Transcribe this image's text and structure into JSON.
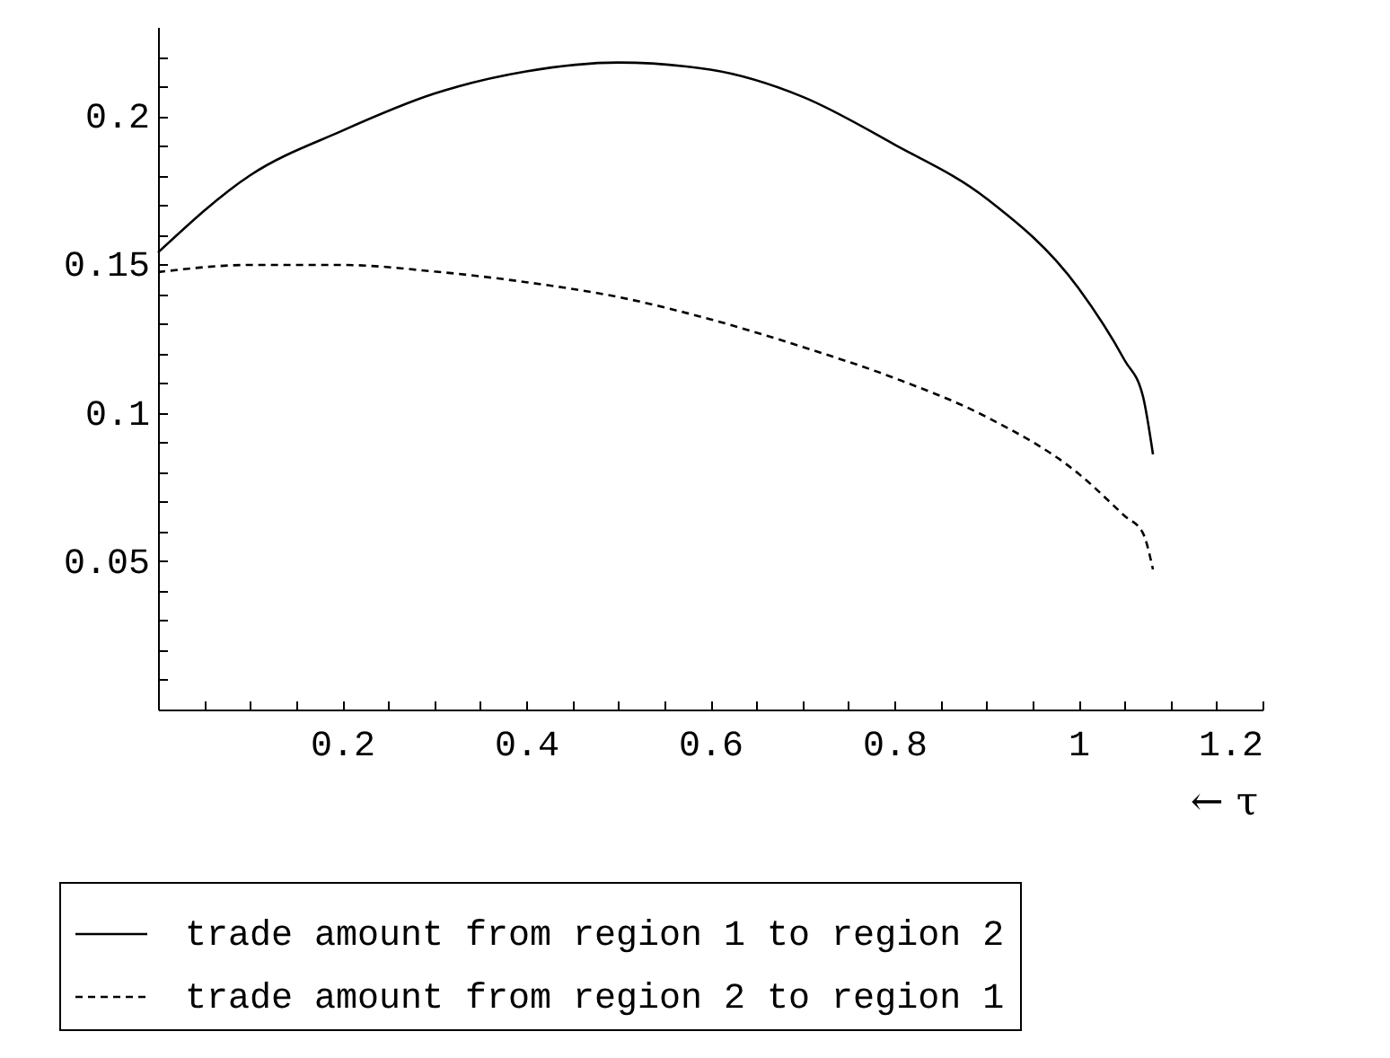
{
  "chart_data": {
    "type": "line",
    "xlabel": "← τ",
    "xlim": [
      0,
      1.2
    ],
    "ylim": [
      0,
      0.23
    ],
    "xticks": [
      {
        "value": 0.05,
        "label": null
      },
      {
        "value": 0.1,
        "label": null
      },
      {
        "value": 0.15,
        "label": null
      },
      0.2,
      {
        "value": 0.25,
        "label": null
      },
      {
        "value": 0.3,
        "label": null
      },
      {
        "value": 0.35,
        "label": null
      },
      0.4,
      {
        "value": 0.45,
        "label": null
      },
      {
        "value": 0.5,
        "label": null
      },
      {
        "value": 0.55,
        "label": null
      },
      0.6,
      {
        "value": 0.65,
        "label": null
      },
      {
        "value": 0.7,
        "label": null
      },
      {
        "value": 0.75,
        "label": null
      },
      0.8,
      {
        "value": 0.85,
        "label": null
      },
      {
        "value": 0.9,
        "label": null
      },
      {
        "value": 0.95,
        "label": null
      },
      1,
      {
        "value": 1.05,
        "label": null
      },
      {
        "value": 1.1,
        "label": null
      },
      {
        "value": 1.15,
        "label": null
      },
      1.2
    ],
    "yticks": [
      {
        "value": 0.01,
        "label": null
      },
      {
        "value": 0.02,
        "label": null
      },
      {
        "value": 0.03,
        "label": null
      },
      {
        "value": 0.04,
        "label": null
      },
      0.05,
      {
        "value": 0.06,
        "label": null
      },
      {
        "value": 0.07,
        "label": null
      },
      {
        "value": 0.08,
        "label": null
      },
      {
        "value": 0.09,
        "label": null
      },
      0.1,
      {
        "value": 0.11,
        "label": null
      },
      {
        "value": 0.12,
        "label": null
      },
      {
        "value": 0.13,
        "label": null
      },
      {
        "value": 0.14,
        "label": null
      },
      0.15,
      {
        "value": 0.16,
        "label": null
      },
      {
        "value": 0.17,
        "label": null
      },
      {
        "value": 0.18,
        "label": null
      },
      {
        "value": 0.19,
        "label": null
      },
      0.2,
      {
        "value": 0.21,
        "label": null
      },
      {
        "value": 0.22,
        "label": null
      }
    ],
    "x": [
      0,
      0.1,
      0.2,
      0.3,
      0.4,
      0.5,
      0.6,
      0.7,
      0.8,
      0.9,
      1.0,
      1.05,
      1.07,
      1.081
    ],
    "series": [
      {
        "name": "trade amount from region 1 to region 2",
        "color": "#000000",
        "line_style": "solid",
        "values": [
          0.154,
          0.18,
          0.195,
          0.2075,
          0.215,
          0.218,
          0.2156,
          0.2065,
          0.1904,
          0.1722,
          0.142,
          0.1178,
          0.1057,
          0.086
        ]
      },
      {
        "name": "trade amount from region 2 to region 1",
        "color": "#000000",
        "line_style": "dashed",
        "values": [
          0.1474,
          0.1498,
          0.1498,
          0.1476,
          0.144,
          0.139,
          0.1315,
          0.1222,
          0.1117,
          0.0986,
          0.0795,
          0.0653,
          0.0595,
          0.0472
        ]
      }
    ],
    "grid": false,
    "legend": "bottom"
  }
}
